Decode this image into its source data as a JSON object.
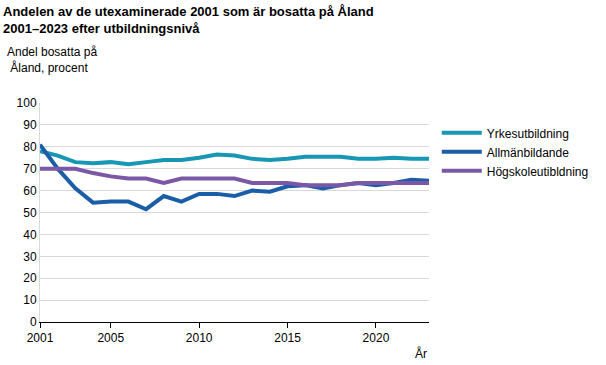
{
  "chart_data": {
    "type": "line",
    "title": "Andelen av de utexaminerade 2001 som är bosatta på Åland",
    "subtitle": "2001–2023 efter utbildningsnivå",
    "y_label": "Andel bosatta på\n Åland, procent",
    "x_label": "År",
    "x": [
      2001,
      2002,
      2003,
      2004,
      2005,
      2006,
      2007,
      2008,
      2009,
      2010,
      2011,
      2012,
      2013,
      2014,
      2015,
      2016,
      2017,
      2018,
      2019,
      2020,
      2021,
      2022,
      2023
    ],
    "series": [
      {
        "name": "Yrkesutbildning",
        "color": "#1897b5",
        "values": [
          78,
          76,
          73,
          72.5,
          73,
          72,
          73,
          74,
          74,
          75,
          76.5,
          76,
          74.5,
          74,
          74.5,
          75.5,
          75.5,
          75.5,
          74.5,
          74.5,
          75,
          74.5,
          74.5
        ]
      },
      {
        "name": "Allmänbildande",
        "color": "#1b5ea8",
        "values": [
          81,
          70,
          61,
          54.5,
          55,
          55,
          51.5,
          57.5,
          55,
          58.5,
          58.5,
          57.5,
          60,
          59.5,
          62,
          62.5,
          61,
          62.5,
          63.5,
          62.5,
          63.5,
          65,
          64.5
        ]
      },
      {
        "name": "Högskoleutibldning",
        "color": "#7b58a6",
        "values": [
          70,
          70,
          70,
          68,
          66.5,
          65.5,
          65.5,
          63.5,
          65.5,
          65.5,
          65.5,
          65.5,
          63.5,
          63.5,
          63.5,
          62.5,
          62.5,
          62.5,
          63.5,
          63.5,
          63.5,
          63.5,
          63.5
        ]
      }
    ],
    "xlim": [
      2001,
      2023
    ],
    "xticks": [
      2001,
      2005,
      2010,
      2015,
      2020
    ],
    "ylim": [
      0,
      100
    ],
    "yticks": [
      0,
      10,
      20,
      30,
      40,
      50,
      60,
      70,
      80,
      90,
      100
    ],
    "grid": true,
    "legend": "right"
  }
}
